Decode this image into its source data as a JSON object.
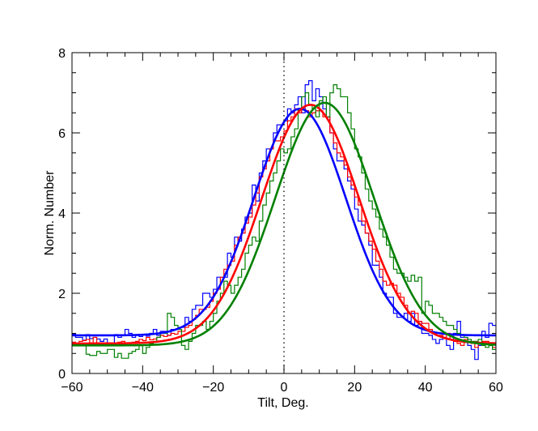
{
  "chart_data": {
    "type": "line",
    "title": "",
    "xlabel": "Tilt, Deg.",
    "ylabel": "Norm. Number",
    "xlim": [
      -60,
      60
    ],
    "ylim": [
      0,
      8
    ],
    "x_ticks": [
      -60,
      -40,
      -20,
      0,
      20,
      40,
      60
    ],
    "x_tick_labels": [
      "−60",
      "−40",
      "−20",
      "0",
      "20",
      "40",
      "60"
    ],
    "y_ticks": [
      0,
      2,
      4,
      6,
      8
    ],
    "y_tick_labels": [
      "0",
      "2",
      "4",
      "6",
      "8"
    ],
    "reference_line": {
      "x": 0,
      "style": "dotted"
    },
    "histogram_bin_width": 1,
    "series": [
      {
        "name": "blue",
        "color": "#0000ff",
        "fit": {
          "baseline": 0.95,
          "amplitude": 5.65,
          "center": 4.5,
          "sigma": 13.0
        },
        "histogram": [
          0.98,
          0.9,
          0.9,
          0.83,
          0.97,
          0.87,
          0.9,
          0.86,
          0.8,
          0.86,
          0.74,
          0.75,
          0.97,
          0.9,
          0.95,
          1.1,
          1.0,
          0.9,
          0.95,
          0.92,
          0.97,
          0.93,
          1.0,
          1.1,
          0.95,
          1.05,
          1.05,
          0.95,
          1.1,
          1.1,
          1.15,
          1.15,
          1.4,
          1.3,
          1.6,
          1.7,
          1.7,
          2.0,
          2.0,
          1.9,
          2.1,
          2.4,
          2.4,
          2.4,
          3.0,
          2.9,
          3.4,
          3.3,
          3.6,
          3.9,
          4.0,
          4.7,
          4.3,
          5.0,
          5.3,
          5.6,
          5.6,
          6.0,
          6.2,
          6.2,
          6.3,
          6.6,
          6.5,
          6.7,
          6.9,
          6.5,
          7.2,
          7.3,
          6.8,
          7.1,
          6.9,
          6.6,
          6.4,
          6.0,
          5.6,
          5.3,
          5.3,
          5.1,
          4.8,
          4.6,
          4.1,
          3.8,
          3.7,
          3.5,
          3.2,
          2.7,
          2.7,
          2.4,
          2.0,
          1.9,
          1.9,
          1.5,
          1.4,
          1.4,
          1.5,
          1.3,
          1.5,
          1.2,
          1.3,
          1.0,
          1.0,
          0.95,
          0.85,
          0.75,
          0.85,
          0.9,
          0.7,
          0.6,
          1.0,
          1.3,
          0.9,
          0.9,
          0.7,
          0.6,
          0.35,
          0.7,
          1.05,
          0.9,
          1.25,
          1.2
        ]
      },
      {
        "name": "red",
        "color": "#ff0000",
        "fit": {
          "baseline": 0.75,
          "amplitude": 5.95,
          "center": 7.5,
          "sigma": 13.8
        },
        "histogram": [
          0.78,
          0.75,
          0.8,
          0.82,
          0.85,
          0.75,
          0.9,
          0.72,
          0.75,
          0.75,
          0.7,
          0.72,
          0.74,
          0.78,
          0.8,
          0.75,
          0.75,
          0.78,
          0.8,
          0.85,
          0.82,
          0.9,
          0.84,
          0.86,
          0.9,
          0.95,
          0.92,
          0.95,
          1.0,
          0.98,
          1.05,
          1.05,
          1.15,
          1.2,
          1.35,
          1.45,
          1.6,
          1.6,
          1.65,
          1.8,
          2.0,
          2.1,
          2.4,
          2.6,
          2.7,
          2.8,
          3.2,
          3.4,
          3.5,
          3.75,
          3.9,
          4.2,
          4.5,
          4.9,
          5.1,
          5.3,
          5.6,
          5.8,
          5.8,
          5.9,
          6.05,
          6.3,
          6.4,
          6.6,
          6.5,
          6.6,
          6.55,
          6.4,
          6.5,
          6.55,
          6.55,
          6.4,
          6.4,
          6.0,
          5.75,
          5.5,
          5.4,
          5.2,
          4.9,
          4.7,
          4.4,
          4.2,
          3.8,
          3.5,
          3.3,
          3.1,
          2.8,
          2.6,
          2.3,
          2.2,
          2.25,
          2.2,
          2.0,
          1.9,
          1.7,
          1.5,
          1.55,
          1.5,
          1.3,
          1.25,
          1.25,
          1.1,
          1.0,
          0.95,
          0.95,
          0.9,
          1.0,
          0.85,
          0.8,
          0.75,
          0.7,
          0.85,
          0.8,
          0.75,
          0.65,
          0.75,
          0.8,
          0.8,
          0.75,
          0.65
        ]
      },
      {
        "name": "green",
        "color": "#008000",
        "fit": {
          "baseline": 0.7,
          "amplitude": 6.05,
          "center": 11.5,
          "sigma": 14.0
        },
        "histogram": [
          0.72,
          0.7,
          0.74,
          0.7,
          0.48,
          0.45,
          0.45,
          0.55,
          0.5,
          0.5,
          0.6,
          0.6,
          0.4,
          0.5,
          0.38,
          0.38,
          0.5,
          0.55,
          0.6,
          0.7,
          0.5,
          0.65,
          0.75,
          0.8,
          0.9,
          1.0,
          1.0,
          1.5,
          1.4,
          1.2,
          1.1,
          0.7,
          0.6,
          0.8,
          1.0,
          1.2,
          1.2,
          1.3,
          1.1,
          1.3,
          1.5,
          1.8,
          2.0,
          2.3,
          2.2,
          2.0,
          2.2,
          2.4,
          2.6,
          3.0,
          3.2,
          3.4,
          3.3,
          3.8,
          4.2,
          4.5,
          4.8,
          5.0,
          5.3,
          5.6,
          5.5,
          5.6,
          5.9,
          6.1,
          6.6,
          6.9,
          7.0,
          6.7,
          6.6,
          6.4,
          6.8,
          6.9,
          6.4,
          7.0,
          7.2,
          7.1,
          6.9,
          6.9,
          6.5,
          6.1,
          5.6,
          5.4,
          5.0,
          4.6,
          4.3,
          4.1,
          3.9,
          3.6,
          3.4,
          3.2,
          2.9,
          2.6,
          2.5,
          2.5,
          2.4,
          2.3,
          2.45,
          2.3,
          2.4,
          1.5,
          1.8,
          1.7,
          1.5,
          1.5,
          1.4,
          1.3,
          1.2,
          1.2,
          1.1,
          1.0,
          0.95,
          0.9,
          0.85,
          0.8,
          0.8,
          0.85,
          0.7,
          0.65,
          0.7,
          0.6
        ]
      }
    ]
  }
}
